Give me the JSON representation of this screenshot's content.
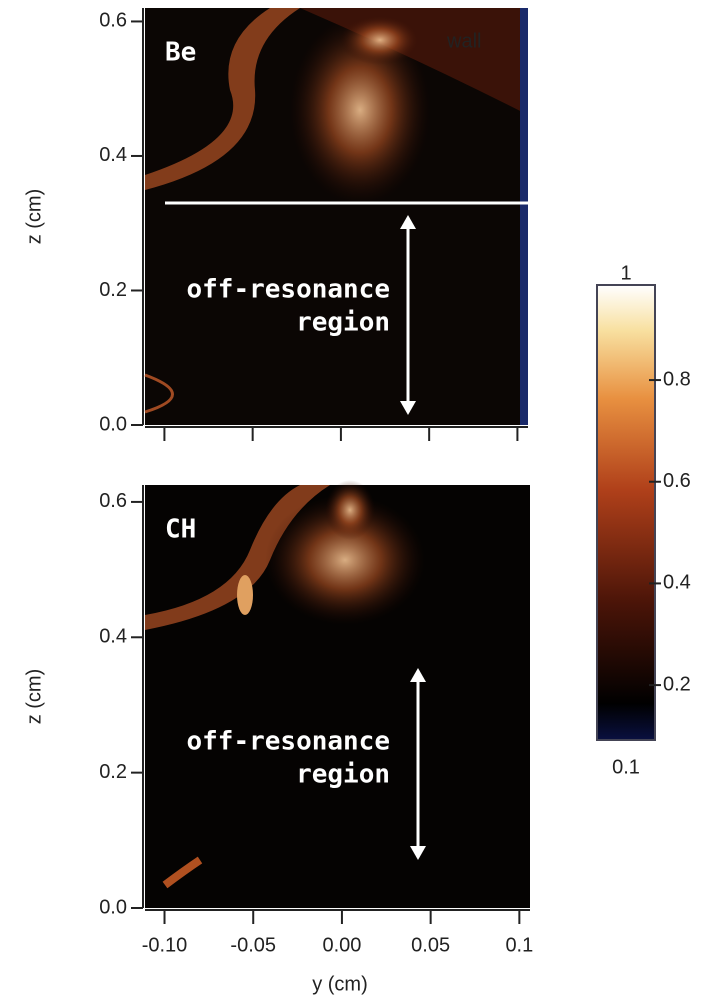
{
  "chart_data": [
    {
      "type": "image",
      "title": "Be",
      "ylabel": "z (cm)",
      "annotations": [
        "wall",
        "off-resonance",
        "region"
      ],
      "xlim": [
        -0.111,
        0.106
      ],
      "xticks": [
        -0.1,
        -0.05,
        0,
        0.05,
        0.1
      ],
      "ylim": [
        0,
        0.62
      ],
      "yticks": [
        {
          "value": 0,
          "label": "0.0"
        },
        0.2,
        0.4,
        0.6
      ]
    },
    {
      "type": "image",
      "title": "CH",
      "ylabel": "z (cm)",
      "xlabel": "y (cm)",
      "annotations": [
        "off-resonance",
        "region"
      ],
      "xlim": [
        -0.111,
        0.106
      ],
      "xticks": [
        {
          "value": -0.1,
          "label": "-0.10"
        },
        -0.05,
        {
          "value": 0,
          "label": "0.00"
        },
        0.05,
        0.1
      ],
      "ylim": [
        0,
        0.625
      ],
      "yticks": [
        {
          "value": 0,
          "label": "0.0"
        },
        0.2,
        0.4,
        0.6
      ]
    },
    {
      "type": "colorbar",
      "range_labels": [
        "0.1",
        "1"
      ],
      "ylim": [
        0.092,
        0.987
      ],
      "yticks": [
        0.2,
        0.4,
        0.6,
        0.8
      ]
    }
  ]
}
